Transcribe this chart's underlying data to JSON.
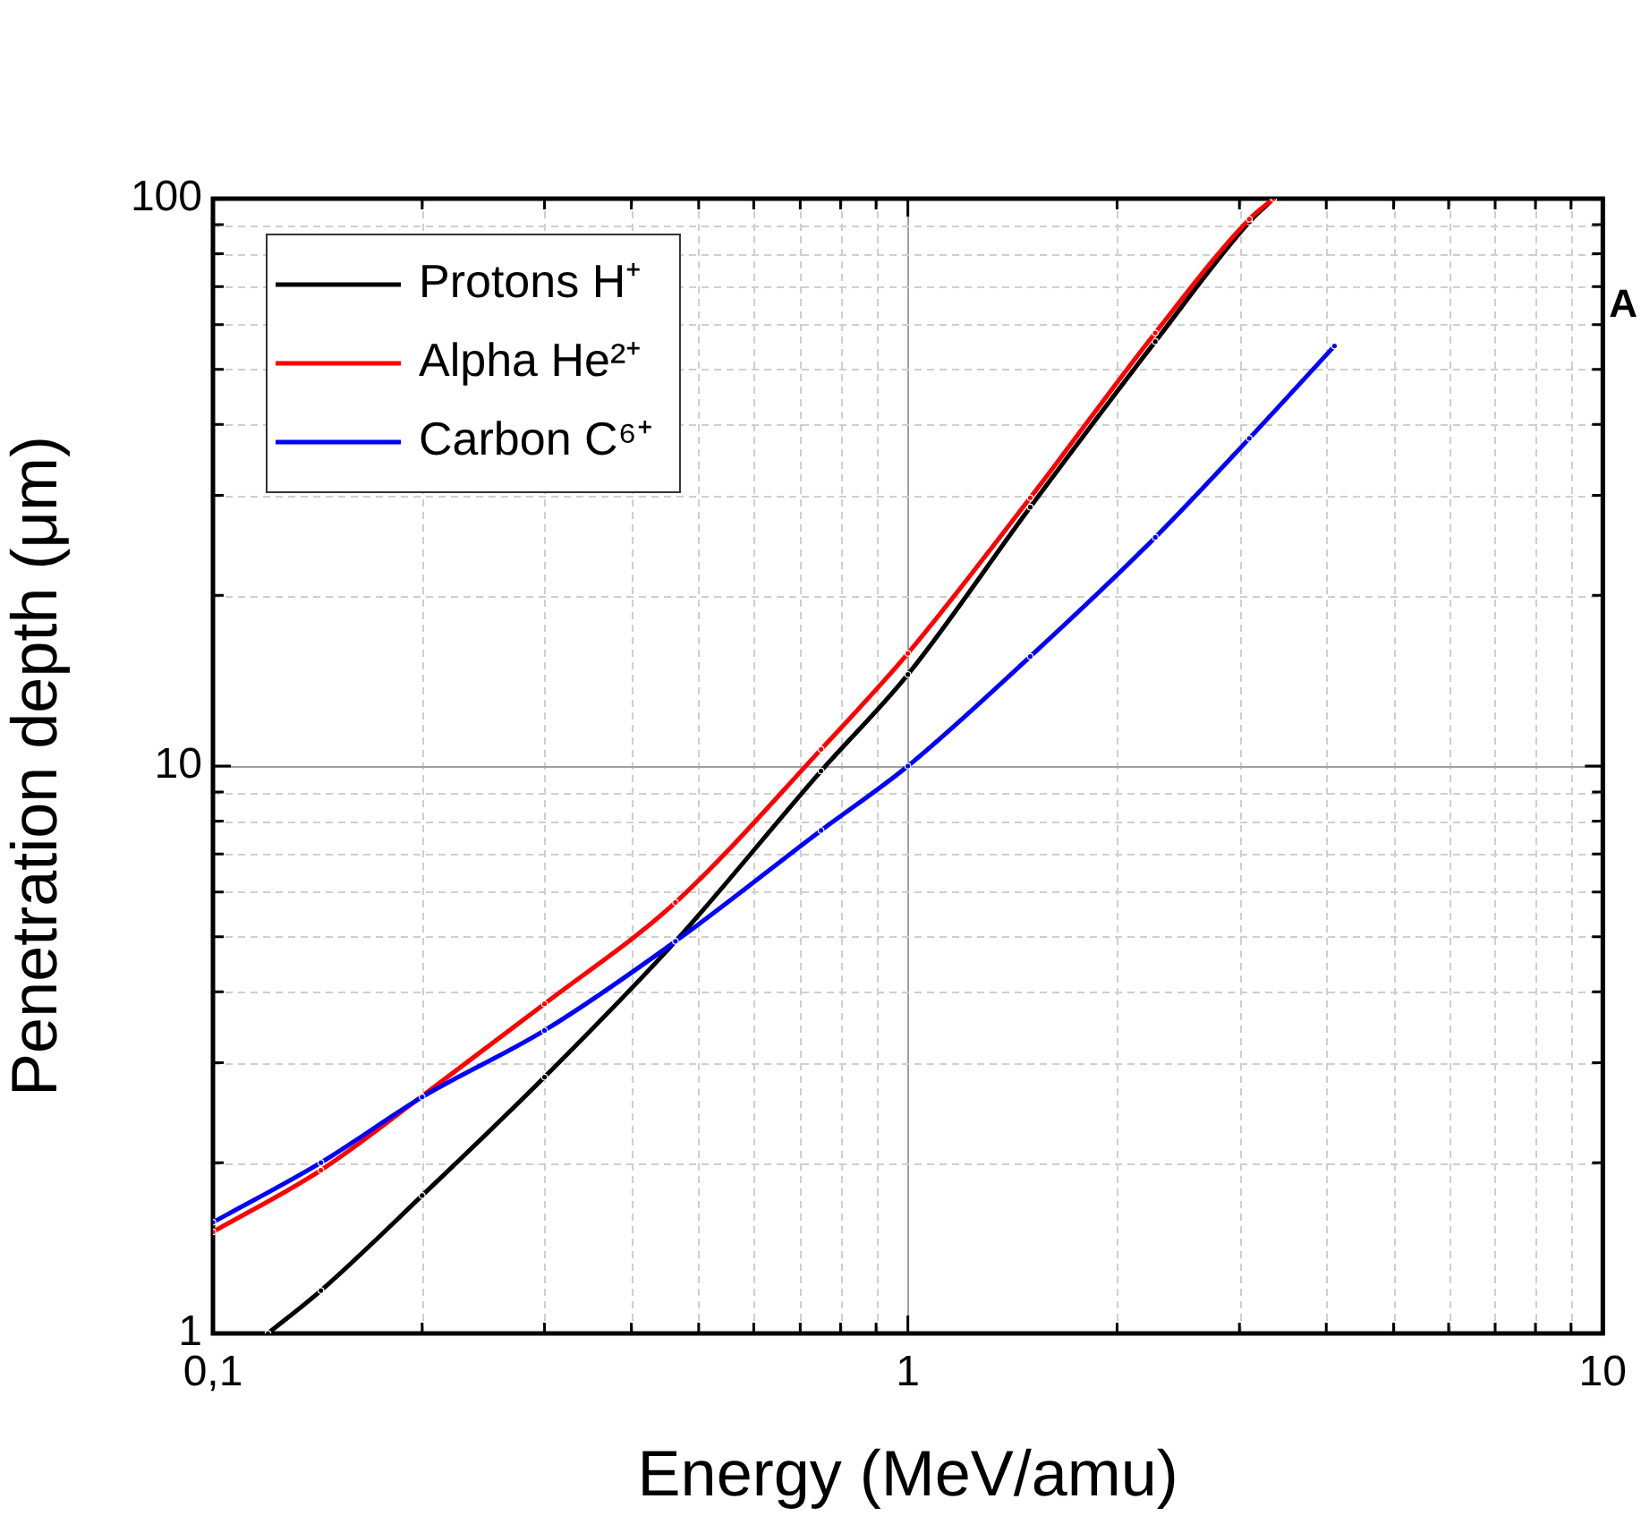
{
  "chart_data": {
    "type": "line",
    "xlabel": "Energy (MeV/amu)",
    "ylabel": "Penetration depth (μm)",
    "log": "xy",
    "grid": true,
    "legend": "top left",
    "marker": "circle",
    "line_style": "solid",
    "xlim": [
      0.1,
      10
    ],
    "ylim": [
      1,
      100
    ],
    "xticks": [
      {
        "value": 0.1,
        "label": "0,1"
      },
      {
        "value": 0.2,
        "label": null
      },
      {
        "value": 0.3,
        "label": null
      },
      {
        "value": 0.4,
        "label": null
      },
      {
        "value": 0.5,
        "label": null
      },
      {
        "value": 0.6,
        "label": null
      },
      {
        "value": 0.7,
        "label": null
      },
      {
        "value": 0.8,
        "label": null
      },
      {
        "value": 0.9,
        "label": null
      },
      1,
      {
        "value": 2,
        "label": null
      },
      {
        "value": 3,
        "label": null
      },
      {
        "value": 4,
        "label": null
      },
      {
        "value": 5,
        "label": null
      },
      {
        "value": 6,
        "label": null
      },
      {
        "value": 7,
        "label": null
      },
      {
        "value": 8,
        "label": null
      },
      {
        "value": 9,
        "label": null
      },
      10
    ],
    "yticks": [
      1,
      {
        "value": 2,
        "label": null
      },
      {
        "value": 3,
        "label": null
      },
      {
        "value": 4,
        "label": null
      },
      {
        "value": 5,
        "label": null
      },
      {
        "value": 6,
        "label": null
      },
      {
        "value": 7,
        "label": null
      },
      {
        "value": 8,
        "label": null
      },
      {
        "value": 9,
        "label": null
      },
      10,
      {
        "value": 20,
        "label": null
      },
      {
        "value": 30,
        "label": null
      },
      {
        "value": 40,
        "label": null
      },
      {
        "value": 50,
        "label": null
      },
      {
        "value": 60,
        "label": null
      },
      {
        "value": 70,
        "label": null
      },
      {
        "value": 80,
        "label": null
      },
      {
        "value": 90,
        "label": null
      },
      100
    ],
    "annotations": [
      "A"
    ],
    "series": [
      {
        "name": "Protons H⁺",
        "color": "#000000",
        "x": [
          0.12,
          0.143,
          0.2,
          0.3,
          0.463,
          0.75,
          1,
          1.5,
          2.27,
          3.1,
          3.36
        ],
        "values": [
          1,
          1.19,
          1.75,
          2.83,
          4.91,
          9.8,
          14.5,
          28.6,
          56,
          91,
          100
        ]
      },
      {
        "name": "Alpha He²⁺",
        "color": "#ff0000",
        "x": [
          0.1,
          0.143,
          0.2,
          0.3,
          0.463,
          0.75,
          1,
          1.5,
          2.27,
          3.1,
          3.36
        ],
        "values": [
          1.51,
          1.94,
          2.62,
          3.81,
          5.75,
          10.7,
          15.8,
          29.7,
          58,
          92,
          100
        ]
      },
      {
        "name": "Carbon C⁶⁺",
        "color": "#0000ff",
        "x": [
          0.1,
          0.143,
          0.2,
          0.3,
          0.463,
          0.75,
          1,
          1.5,
          2.27,
          3.1,
          4.11
        ],
        "values": [
          1.57,
          2.0,
          2.61,
          3.42,
          4.91,
          7.7,
          10,
          15.6,
          25.3,
          37.8,
          55
        ]
      }
    ]
  }
}
